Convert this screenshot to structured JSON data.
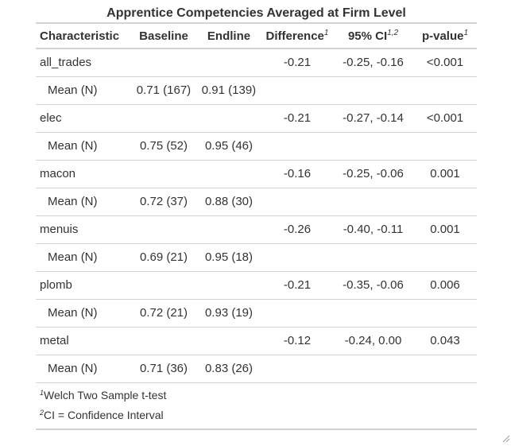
{
  "title": "Apprentice Competencies Averaged at Firm Level",
  "columns": {
    "characteristic": "Characteristic",
    "baseline": "Baseline",
    "endline": "Endline",
    "difference": "Difference",
    "difference_sup": "1",
    "ci": "95% CI",
    "ci_sup": "1,2",
    "p": "p-value",
    "p_sup": "1"
  },
  "rows": [
    {
      "label": "all_trades",
      "baseline": "",
      "endline": "",
      "difference": "-0.21",
      "ci": "-0.25, -0.16",
      "p": "<0.001"
    },
    {
      "label": "Mean (N)",
      "baseline": "0.71 (167)",
      "endline": "0.91 (139)",
      "difference": "",
      "ci": "",
      "p": ""
    },
    {
      "label": "elec",
      "baseline": "",
      "endline": "",
      "difference": "-0.21",
      "ci": "-0.27, -0.14",
      "p": "<0.001"
    },
    {
      "label": "Mean (N)",
      "baseline": "0.75 (52)",
      "endline": "0.95 (46)",
      "difference": "",
      "ci": "",
      "p": ""
    },
    {
      "label": "macon",
      "baseline": "",
      "endline": "",
      "difference": "-0.16",
      "ci": "-0.25, -0.06",
      "p": "0.001"
    },
    {
      "label": "Mean (N)",
      "baseline": "0.72 (37)",
      "endline": "0.88 (30)",
      "difference": "",
      "ci": "",
      "p": ""
    },
    {
      "label": "menuis",
      "baseline": "",
      "endline": "",
      "difference": "-0.26",
      "ci": "-0.40, -0.11",
      "p": "0.001"
    },
    {
      "label": "Mean (N)",
      "baseline": "0.69 (21)",
      "endline": "0.95 (18)",
      "difference": "",
      "ci": "",
      "p": ""
    },
    {
      "label": "plomb",
      "baseline": "",
      "endline": "",
      "difference": "-0.21",
      "ci": "-0.35, -0.06",
      "p": "0.006"
    },
    {
      "label": "Mean (N)",
      "baseline": "0.72 (21)",
      "endline": "0.93 (19)",
      "difference": "",
      "ci": "",
      "p": ""
    },
    {
      "label": "metal",
      "baseline": "",
      "endline": "",
      "difference": "-0.12",
      "ci": "-0.24, 0.00",
      "p": "0.043"
    },
    {
      "label": "Mean (N)",
      "baseline": "0.71 (36)",
      "endline": "0.83 (26)",
      "difference": "",
      "ci": "",
      "p": ""
    }
  ],
  "footnotes": [
    {
      "mark": "1",
      "text": "Welch Two Sample t-test"
    },
    {
      "mark": "2",
      "text": "CI = Confidence Interval"
    }
  ]
}
